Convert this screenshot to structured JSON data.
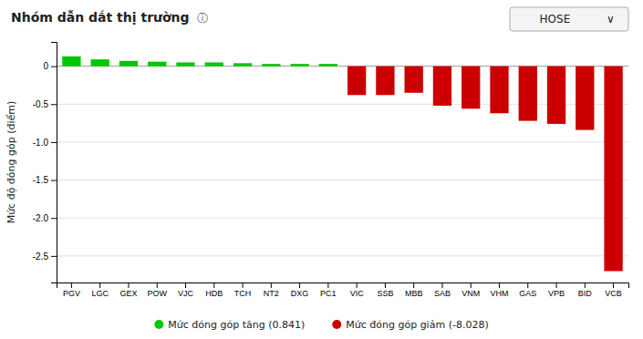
{
  "chart_data": {
    "type": "bar",
    "title": "Nhóm dẫn dắt thị trường",
    "annotations": [
      "ⓘ",
      "HOSE",
      "∨"
    ],
    "ylabel": "Mức độ đóng góp (điểm)",
    "categories": [
      "PGV",
      "LGC",
      "GEX",
      "POW",
      "VJC",
      "HDB",
      "TCH",
      "NT2",
      "DXG",
      "PC1",
      "VIC",
      "SSB",
      "MBB",
      "SAB",
      "VNM",
      "VHM",
      "GAS",
      "VPB",
      "BID",
      "VCB"
    ],
    "series": [
      {
        "name": "Mức đóng góp tăng (0.841)",
        "color": "#00c800",
        "values": [
          0.13,
          0.09,
          0.07,
          0.06,
          0.05,
          0.05,
          0.04,
          0.03,
          0.03,
          0.03,
          null,
          null,
          null,
          null,
          null,
          null,
          null,
          null,
          null,
          null
        ]
      },
      {
        "name": "Mức đóng góp giảm (-8.028)",
        "color": "#cc0000",
        "values": [
          null,
          null,
          null,
          null,
          null,
          null,
          null,
          null,
          null,
          null,
          -0.38,
          -0.38,
          -0.35,
          -0.52,
          -0.56,
          -0.62,
          -0.72,
          -0.76,
          -0.84,
          -2.7
        ]
      }
    ],
    "ylim": [
      -2.85,
      0.32
    ],
    "yticks": [
      0,
      -0.5,
      {
        "value": -1,
        "label": "-1.0"
      },
      -1.5,
      {
        "value": -2,
        "label": "-2.0"
      },
      -2.5
    ],
    "grid": true,
    "legend": "bottom"
  }
}
